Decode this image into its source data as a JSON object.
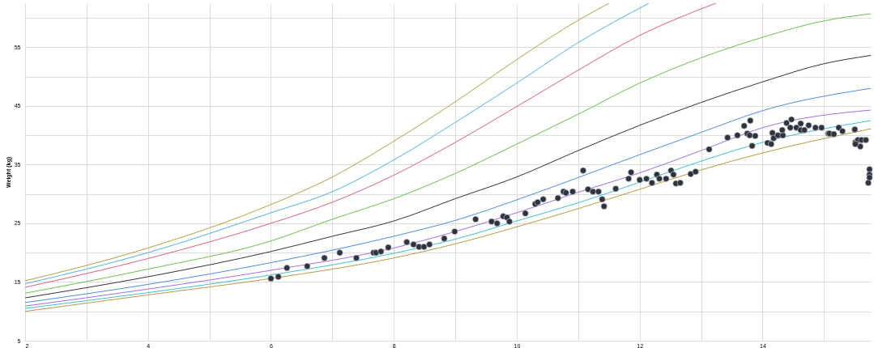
{
  "chart_data": {
    "type": "line",
    "ylabel": "Weight (kg)",
    "xlim": [
      2,
      15.76
    ],
    "ylim": [
      5,
      62.5
    ],
    "xticks": [
      2,
      {
        "value": 3,
        "label": null
      },
      4,
      {
        "value": 5,
        "label": null
      },
      6,
      {
        "value": 7,
        "label": null
      },
      8,
      {
        "value": 9,
        "label": null
      },
      10,
      {
        "value": 11,
        "label": null
      },
      12,
      {
        "value": 13,
        "label": null
      },
      14,
      {
        "value": 15,
        "label": null
      }
    ],
    "yticks": [
      5,
      {
        "value": 10,
        "label": null
      },
      15,
      {
        "value": 20,
        "label": null
      },
      25,
      {
        "value": 30,
        "label": null
      },
      35,
      {
        "value": 40,
        "label": null
      },
      45,
      {
        "value": 50,
        "label": null
      },
      55,
      {
        "value": 60,
        "label": null
      }
    ],
    "grid": true,
    "line_style": "solid",
    "series": [
      {
        "color": "#b5a040",
        "x": [
          2,
          4,
          6,
          7,
          8,
          9,
          10,
          11,
          11.5
        ],
        "values": [
          15.2,
          20.8,
          28.2,
          32.9,
          39.0,
          45.7,
          52.9,
          59.6,
          62.5
        ]
      },
      {
        "color": "#4fb3e8",
        "x": [
          2,
          4,
          6,
          7,
          8,
          9,
          10,
          11,
          12.15
        ],
        "values": [
          14.7,
          20.0,
          26.8,
          30.4,
          35.8,
          42.2,
          48.9,
          55.8,
          62.5
        ]
      },
      {
        "color": "#e0607a",
        "x": [
          2,
          4,
          6,
          7,
          8,
          9,
          10,
          11,
          12,
          13.24
        ],
        "values": [
          14.1,
          19.0,
          25.0,
          28.6,
          33.2,
          38.8,
          44.9,
          51.1,
          57.0,
          62.5
        ]
      },
      {
        "color": "#6cc04a",
        "x": [
          2,
          4,
          6,
          7,
          8,
          9,
          10,
          11,
          12,
          13,
          14,
          15,
          15.76
        ],
        "values": [
          13.1,
          17.2,
          22.0,
          25.7,
          29.2,
          33.5,
          38.5,
          43.6,
          48.9,
          53.2,
          56.7,
          59.5,
          60.7
        ]
      },
      {
        "color": "#333333",
        "x": [
          2,
          4,
          6,
          7,
          8,
          9,
          10,
          11,
          12,
          13,
          14,
          15,
          15.76
        ],
        "values": [
          12.3,
          15.9,
          20.2,
          22.8,
          25.4,
          29.2,
          32.9,
          37.4,
          41.7,
          45.6,
          49.1,
          52.2,
          53.6
        ]
      },
      {
        "color": "#4a8fe0",
        "x": [
          2,
          4,
          6,
          8,
          9,
          10,
          11,
          12,
          13,
          14,
          15.76
        ],
        "values": [
          11.5,
          14.6,
          18.3,
          22.8,
          25.5,
          29.0,
          32.8,
          36.7,
          40.5,
          44.2,
          48.0
        ]
      },
      {
        "color": "#a070e0",
        "x": [
          2,
          4,
          6,
          8,
          9,
          10,
          11,
          12,
          13,
          14,
          15.76
        ],
        "values": [
          10.9,
          13.8,
          17.0,
          20.8,
          23.6,
          26.8,
          30.3,
          33.6,
          37.4,
          41.3,
          44.3
        ]
      },
      {
        "color": "#40c0d0",
        "x": [
          2,
          4,
          6,
          8,
          9,
          10,
          11,
          12,
          13,
          14,
          15.76
        ],
        "values": [
          10.5,
          13.2,
          16.2,
          19.9,
          22.3,
          25.4,
          28.5,
          32.0,
          35.6,
          38.8,
          42.5
        ]
      },
      {
        "color": "#b89a40",
        "x": [
          2,
          4,
          6,
          8,
          9,
          10,
          11,
          12,
          13,
          14,
          15.76
        ],
        "values": [
          10.0,
          12.8,
          15.6,
          19.1,
          21.5,
          24.4,
          27.5,
          30.8,
          34.1,
          37.0,
          41.1
        ]
      },
      {
        "type": "scatter",
        "marker": "circle",
        "color": "#2d3440",
        "x": [
          6.0,
          6.12,
          6.26,
          6.59,
          6.87,
          7.12,
          7.39,
          7.67,
          7.71,
          7.79,
          7.91,
          8.21,
          8.32,
          8.41,
          8.49,
          8.58,
          8.82,
          8.99,
          9.33,
          9.59,
          9.68,
          9.78,
          9.84,
          9.88,
          10.14,
          10.3,
          10.34,
          10.43,
          10.67,
          10.76,
          10.8,
          10.91,
          11.08,
          11.16,
          11.24,
          11.33,
          11.39,
          11.42,
          11.61,
          11.82,
          11.86,
          12.0,
          12.11,
          12.2,
          12.28,
          12.32,
          12.43,
          12.51,
          12.55,
          12.59,
          12.66,
          12.83,
          12.91,
          13.13,
          13.43,
          13.59,
          13.7,
          13.8,
          13.75,
          13.79,
          13.88,
          13.83,
          14.08,
          14.14,
          14.16,
          14.18,
          14.25,
          14.33,
          14.32,
          14.39,
          14.47,
          14.45,
          14.55,
          14.62,
          14.62,
          14.68,
          14.75,
          14.86,
          14.96,
          15.07,
          15.09,
          15.16,
          15.24,
          15.3,
          15.5,
          15.51,
          15.55,
          15.61,
          15.59,
          15.51,
          15.68,
          15.74,
          15.74,
          15.72,
          15.74
        ],
        "values": [
          15.6,
          15.9,
          17.4,
          17.7,
          19.1,
          20.0,
          19.1,
          20.0,
          20.0,
          20.2,
          20.9,
          21.8,
          21.4,
          21.0,
          21.0,
          21.4,
          22.4,
          23.6,
          25.7,
          25.3,
          25.0,
          26.2,
          26.0,
          25.3,
          26.7,
          28.3,
          28.6,
          29.1,
          29.3,
          30.4,
          30.2,
          30.4,
          34.0,
          30.8,
          30.4,
          30.4,
          29.1,
          27.9,
          30.9,
          32.6,
          33.7,
          32.4,
          32.6,
          31.9,
          33.3,
          32.6,
          32.6,
          34.0,
          33.3,
          31.8,
          31.9,
          33.4,
          33.8,
          37.6,
          39.6,
          40.0,
          41.6,
          42.5,
          40.3,
          40.0,
          39.9,
          38.2,
          38.7,
          38.5,
          40.4,
          39.5,
          40.0,
          40.0,
          40.9,
          42.1,
          42.7,
          41.3,
          41.3,
          42.0,
          40.9,
          40.9,
          41.7,
          41.3,
          41.3,
          40.3,
          40.3,
          40.2,
          41.3,
          40.7,
          41.0,
          38.8,
          39.2,
          39.2,
          38.1,
          38.5,
          39.2,
          34.2,
          33.3,
          31.9,
          32.8
        ]
      }
    ]
  }
}
